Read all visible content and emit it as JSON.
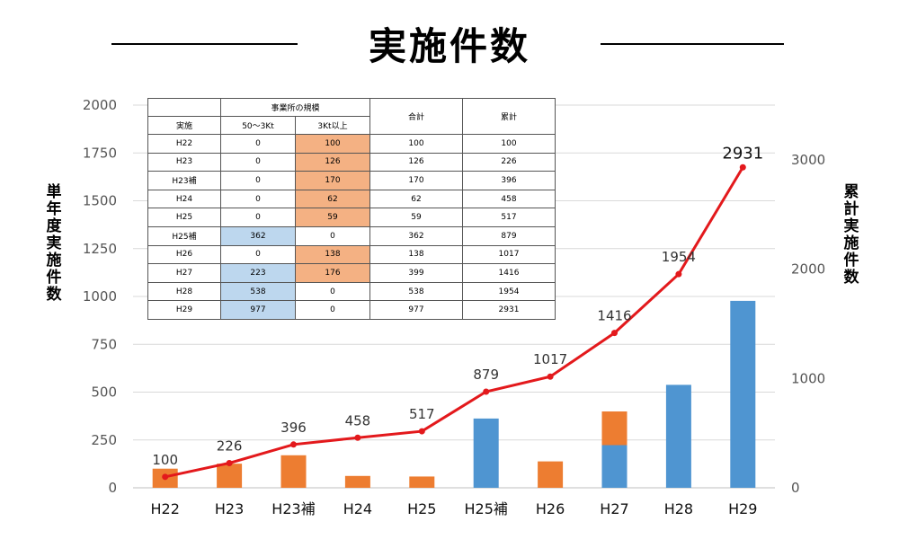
{
  "title": "実施件数",
  "y_left_label": "単年度実施件数",
  "y_right_label": "累計実施件数",
  "colors": {
    "small": "#4f95d1",
    "large": "#ed7d31",
    "cumulative": "#e3191c",
    "table_orange": "#f4b183",
    "table_blue": "#bdd7ee"
  },
  "chart_data": {
    "type": "bar",
    "title": "実施件数",
    "categories": [
      "H22",
      "H23",
      "H23補",
      "H24",
      "H25",
      "H25補",
      "H26",
      "H27",
      "H28",
      "H29"
    ],
    "series": [
      {
        "name": "50～3Kt",
        "kind": "stacked-bar",
        "axis": "left",
        "values": [
          0,
          0,
          0,
          0,
          0,
          362,
          0,
          223,
          538,
          977
        ]
      },
      {
        "name": "3Kt以上",
        "kind": "stacked-bar",
        "axis": "left",
        "values": [
          100,
          126,
          170,
          62,
          59,
          0,
          138,
          176,
          0,
          0
        ]
      },
      {
        "name": "累計",
        "kind": "line",
        "axis": "right",
        "values": [
          100,
          226,
          396,
          458,
          517,
          879,
          1017,
          1416,
          1954,
          2931
        ]
      }
    ],
    "y_left": {
      "label": "単年度実施件数",
      "lim": [
        0,
        2000
      ],
      "ticks": [
        0,
        250,
        500,
        750,
        1000,
        1250,
        1500,
        1750,
        2000
      ]
    },
    "y_right": {
      "label": "累計実施件数",
      "lim": [
        0,
        3500
      ],
      "ticks": [
        0,
        1000,
        2000,
        3000
      ]
    },
    "grid": true
  },
  "table": {
    "header_group": "事業所の規模",
    "headers": [
      "実施",
      "50～3Kt",
      "3Kt以上",
      "合計",
      "累計"
    ],
    "rows": [
      [
        "H22",
        "0",
        "100",
        "100",
        "100"
      ],
      [
        "H23",
        "0",
        "126",
        "126",
        "226"
      ],
      [
        "H23補",
        "0",
        "170",
        "170",
        "396"
      ],
      [
        "H24",
        "0",
        "62",
        "62",
        "458"
      ],
      [
        "H25",
        "0",
        "59",
        "59",
        "517"
      ],
      [
        "H25補",
        "362",
        "0",
        "362",
        "879"
      ],
      [
        "H26",
        "0",
        "138",
        "138",
        "1017"
      ],
      [
        "H27",
        "223",
        "176",
        "399",
        "1416"
      ],
      [
        "H28",
        "538",
        "0",
        "538",
        "1954"
      ],
      [
        "H29",
        "977",
        "0",
        "977",
        "2931"
      ]
    ],
    "highlight": [
      [
        "",
        "",
        "orange",
        "",
        ""
      ],
      [
        "",
        "",
        "orange",
        "",
        ""
      ],
      [
        "",
        "",
        "orange",
        "",
        ""
      ],
      [
        "",
        "",
        "orange",
        "",
        ""
      ],
      [
        "",
        "",
        "orange",
        "",
        ""
      ],
      [
        "",
        "blue",
        "",
        "",
        ""
      ],
      [
        "",
        "",
        "orange",
        "",
        ""
      ],
      [
        "",
        "blue",
        "orange",
        "",
        ""
      ],
      [
        "",
        "blue",
        "",
        "",
        ""
      ],
      [
        "",
        "blue",
        "",
        "",
        ""
      ]
    ]
  }
}
